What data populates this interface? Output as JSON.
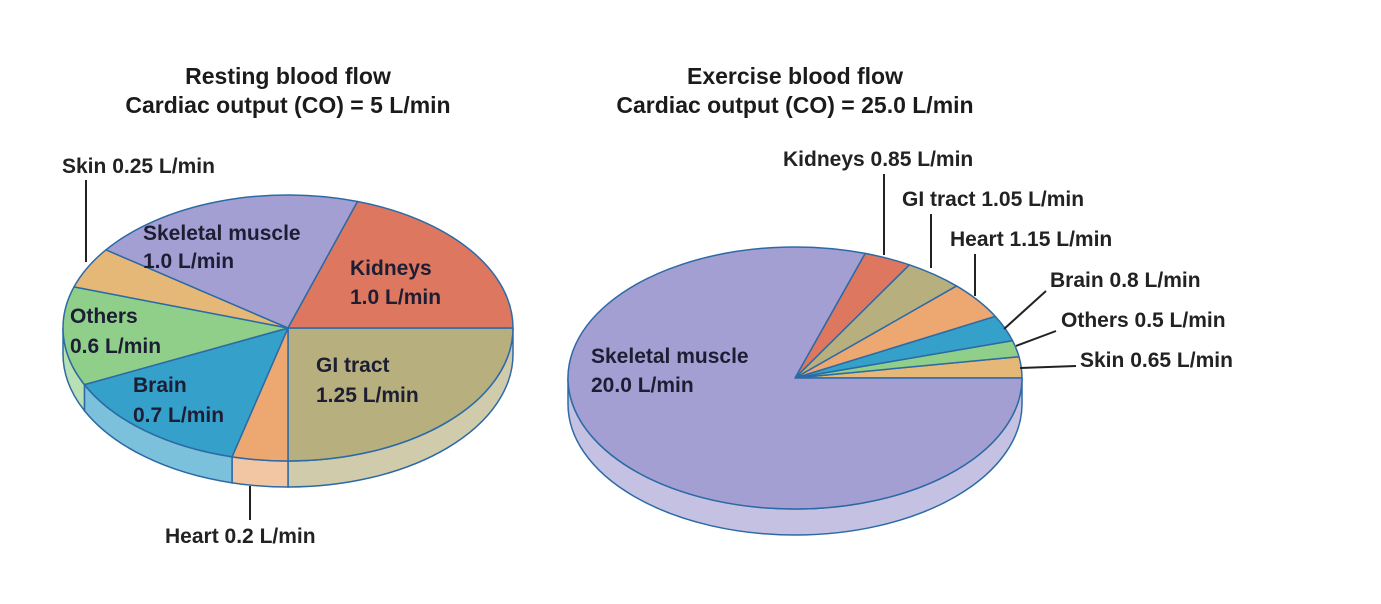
{
  "chart_data": [
    {
      "type": "pie",
      "style": "3d",
      "title": "Resting blood flow",
      "subtitle": "Cardiac output (CO) = 5 L/min",
      "unit": "L/min",
      "direction": "clockwise from 3 o'clock",
      "slices": [
        {
          "label": "GI tract",
          "value": 1.25,
          "value_text": "1.25 L/min",
          "color": "#b7b07e"
        },
        {
          "label": "Heart",
          "value": 0.2,
          "value_text": "0.2 L/min",
          "color": "#eda872"
        },
        {
          "label": "Brain",
          "value": 0.7,
          "value_text": "0.7 L/min",
          "color": "#35a0c9"
        },
        {
          "label": "Others",
          "value": 0.6,
          "value_text": "0.6 L/min",
          "color": "#90cf8a"
        },
        {
          "label": "Skin",
          "value": 0.25,
          "value_text": "0.25 L/min",
          "color": "#e6b878"
        },
        {
          "label": "Skeletal muscle",
          "value": 1.0,
          "value_text": "1.0 L/min",
          "color": "#a49fd2"
        },
        {
          "label": "Kidneys",
          "value": 1.0,
          "value_text": "1.0 L/min",
          "color": "#de7760"
        }
      ]
    },
    {
      "type": "pie",
      "style": "3d",
      "title": "Exercise blood flow",
      "subtitle": "Cardiac output (CO) = 25.0 L/min",
      "unit": "L/min",
      "direction": "counterclockwise from 3 o'clock",
      "slices": [
        {
          "label": "Skin",
          "value": 0.65,
          "value_text": "0.65 L/min",
          "color": "#e6b878"
        },
        {
          "label": "Others",
          "value": 0.5,
          "value_text": "0.5 L/min",
          "color": "#90cf8a"
        },
        {
          "label": "Brain",
          "value": 0.8,
          "value_text": "0.8 L/min",
          "color": "#35a0c9"
        },
        {
          "label": "Heart",
          "value": 1.15,
          "value_text": "1.15 L/min",
          "color": "#eda872"
        },
        {
          "label": "GI tract",
          "value": 1.05,
          "value_text": "1.05 L/min",
          "color": "#b7b07e"
        },
        {
          "label": "Kidneys",
          "value": 0.85,
          "value_text": "0.85 L/min",
          "color": "#de7760"
        },
        {
          "label": "Skeletal muscle",
          "value": 20.0,
          "value_text": "20.0 L/min",
          "color": "#a49fd2"
        }
      ]
    }
  ]
}
